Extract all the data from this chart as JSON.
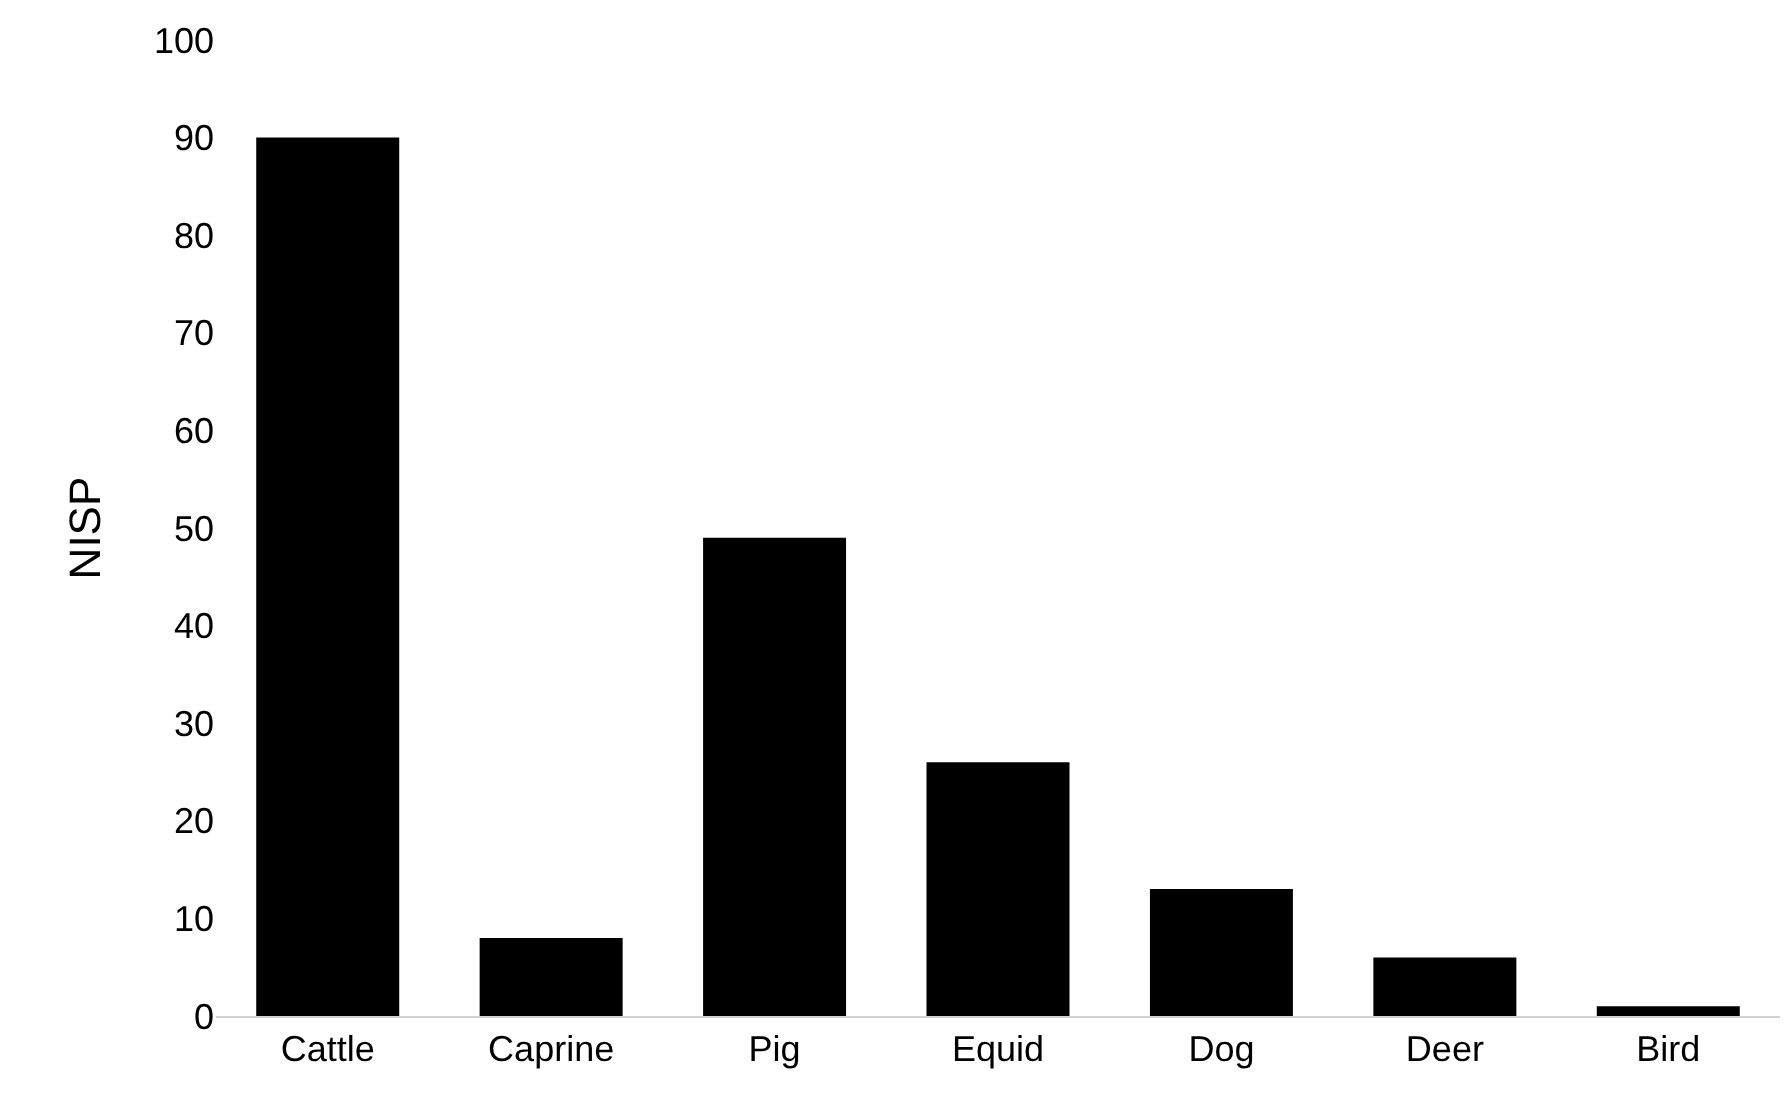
{
  "chart_data": {
    "type": "bar",
    "ylabel": "NISP",
    "categories": [
      "Cattle",
      "Caprine",
      "Pig",
      "Equid",
      "Dog",
      "Deer",
      "Bird"
    ],
    "values": [
      90,
      8,
      49,
      26,
      13,
      6,
      1
    ],
    "color": "#000000",
    "ylim": [
      0,
      100
    ],
    "yticks": [
      0,
      10,
      20,
      30,
      40,
      50,
      60,
      70,
      80,
      90,
      100
    ],
    "legend": false
  }
}
